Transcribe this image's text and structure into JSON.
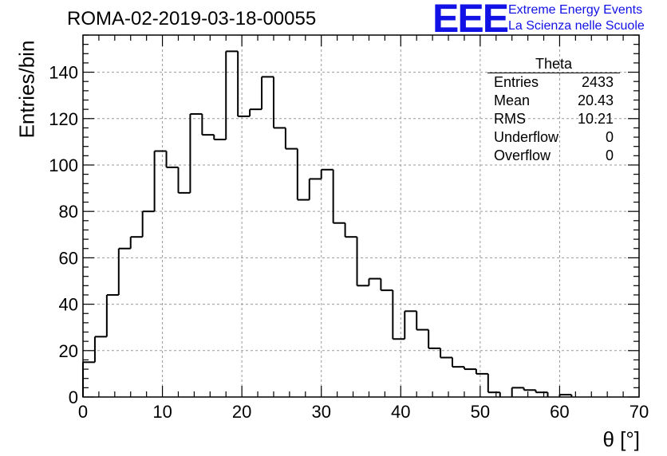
{
  "header": {
    "title": "ROMA-02-2019-03-18-00055",
    "logo_text": "EEE",
    "logo_line1": "Extreme Energy Events",
    "logo_line2": "La Scienza nelle Scuole",
    "brand_color": "#1212e6"
  },
  "stats": {
    "name": "Theta",
    "rows": [
      {
        "label": "Entries",
        "value": "2433"
      },
      {
        "label": "Mean",
        "value": "20.43"
      },
      {
        "label": "RMS",
        "value": "10.21"
      },
      {
        "label": "Underflow",
        "value": "0"
      },
      {
        "label": "Overflow",
        "value": "0"
      }
    ]
  },
  "chart_data": {
    "type": "bar",
    "style": "histogram-step",
    "title": "ROMA-02-2019-03-18-00055",
    "xlabel": "θ [°]",
    "ylabel": "Entries/bin",
    "xlim": [
      0,
      70
    ],
    "ylim": [
      0,
      156
    ],
    "bin_width": 1.5,
    "bin_start": 0,
    "xticks": [
      0,
      10,
      20,
      30,
      40,
      50,
      60,
      70
    ],
    "yticks": [
      0,
      20,
      40,
      60,
      80,
      100,
      120,
      140
    ],
    "grid": true,
    "values": [
      15,
      26,
      44,
      64,
      69,
      80,
      106,
      99,
      88,
      122,
      113,
      111,
      149,
      121,
      124,
      138,
      116,
      107,
      85,
      94,
      98,
      75,
      69,
      48,
      51,
      46,
      25,
      37,
      29,
      21,
      17,
      13,
      12,
      10,
      2,
      0,
      4,
      3,
      2,
      0,
      1,
      0,
      0,
      0,
      0,
      0,
      0
    ]
  }
}
